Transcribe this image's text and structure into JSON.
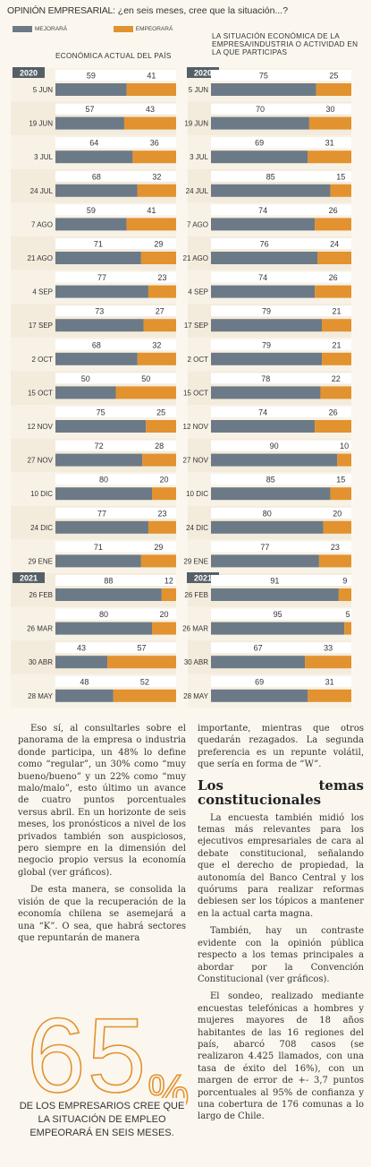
{
  "header": {
    "title_bold": "OPINIÓN EMPRESARIAL:",
    "title_rest": " ¿en seis meses, cree que la situación...?"
  },
  "legend": [
    {
      "label": "MEJORARÁ",
      "color": "#6b7a86"
    },
    {
      "label": "EMPEORARÁ",
      "color": "#e2922f"
    }
  ],
  "chart_data": [
    {
      "type": "bar",
      "title": "ECONÓMICA ACTUAL DEL PAÍS",
      "stacked": true,
      "year_labels": [
        {
          "label": "2020",
          "index": 0
        },
        {
          "label": "2021",
          "index": 15
        }
      ],
      "categories": [
        "5 JUN",
        "19 JUN",
        "3 JUL",
        "24 JUL",
        "7 AGO",
        "21 AGO",
        "4 SEP",
        "17 SEP",
        "2 OCT",
        "15 OCT",
        "12 NOV",
        "27 NOV",
        "10 DIC",
        "24 DIC",
        "29 ENE",
        "26 FEB",
        "26 MAR",
        "30 ABR",
        "28 MAY"
      ],
      "series": [
        {
          "name": "MEJORARÁ",
          "values": [
            59,
            57,
            64,
            68,
            59,
            71,
            77,
            73,
            68,
            50,
            75,
            72,
            80,
            77,
            71,
            88,
            80,
            43,
            48
          ]
        },
        {
          "name": "EMPEORARÁ",
          "values": [
            41,
            43,
            36,
            32,
            41,
            29,
            23,
            27,
            32,
            50,
            25,
            28,
            20,
            23,
            29,
            12,
            20,
            57,
            52
          ]
        }
      ]
    },
    {
      "type": "bar",
      "title": "LA SITUACIÓN ECONÓMICA DE LA EMPRESA/INDUSTRIA O ACTIVIDAD EN LA QUE PARTICIPAS",
      "stacked": true,
      "year_labels": [
        {
          "label": "2020",
          "index": 0
        },
        {
          "label": "2021",
          "index": 15
        }
      ],
      "categories": [
        "5 JUN",
        "19 JUN",
        "3 JUL",
        "24 JUL",
        "7 AGO",
        "21 AGO",
        "4 SEP",
        "17 SEP",
        "2 OCT",
        "15 OCT",
        "12 NOV",
        "27 NOV",
        "10 DIC",
        "24 DIC",
        "29 ENE",
        "26 FEB",
        "26 MAR",
        "30 ABR",
        "28 MAY"
      ],
      "series": [
        {
          "name": "MEJORARÁ",
          "values": [
            75,
            70,
            69,
            85,
            74,
            76,
            74,
            79,
            79,
            78,
            74,
            90,
            85,
            80,
            77,
            91,
            95,
            67,
            69
          ]
        },
        {
          "name": "EMPEORARÁ",
          "values": [
            25,
            30,
            31,
            15,
            26,
            24,
            26,
            21,
            21,
            22,
            26,
            10,
            15,
            20,
            23,
            9,
            5,
            33,
            31
          ]
        }
      ]
    }
  ],
  "article": {
    "left_paragraphs": [
      "Eso sí, al consultarles sobre el panorama de la empresa o industria donde participa, un 48% lo define como “regular”, un 30% como “muy bueno/bueno” y un 22% como “muy malo/malo”, esto último un avance de cuatro puntos porcentuales versus abril. En un horizonte de seis meses, los pronósticos a nivel de los privados también son auspiciosos, pero siempre en la dimensión del negocio propio versus la economía global (ver gráficos).",
      "De esta manera, se consolida la visión de que la recuperación de la economía chilena se asemejará a una “K”. O sea, que habrá sectores que repuntarán de manera"
    ],
    "right_paragraphs_top": [
      "importante, mientras que otros quedarán rezagados. La segunda preferencia es un repunte volátil, que sería en forma de “W”."
    ],
    "subhead": "Los temas constitucionales",
    "right_paragraphs_bottom": [
      "La encuesta también midió los temas más relevantes para los ejecutivos empresariales de cara al debate constitucional, señalando que el derecho de propiedad, la autonomía del Banco Central y los quórums para realizar reformas debiesen ser los tópicos a mantener en la actual carta magna.",
      "También, hay un contraste evidente con la opinión pública respecto a los temas principales a abordar por la Convención Constitucional (ver gráficos).",
      "El sondeo, realizado mediante encuestas telefónicas a hombres y mujeres mayores de 18 años habitantes de las 16 regiones del país, abarcó 708 casos (se realizaron 4.425 llamados, con una tasa de éxito del 16%), con un margen de error de +- 3,7 puntos porcentuales al 95% de confianza y una cobertura de 176 comunas a lo largo de Chile."
    ]
  },
  "callout": {
    "number": "65",
    "percent_sign": "%",
    "text": "DE LOS EMPRESARIOS CREE QUE LA SITUACIÓN DE EMPLEO EMPEORARÁ EN SEIS MESES."
  }
}
